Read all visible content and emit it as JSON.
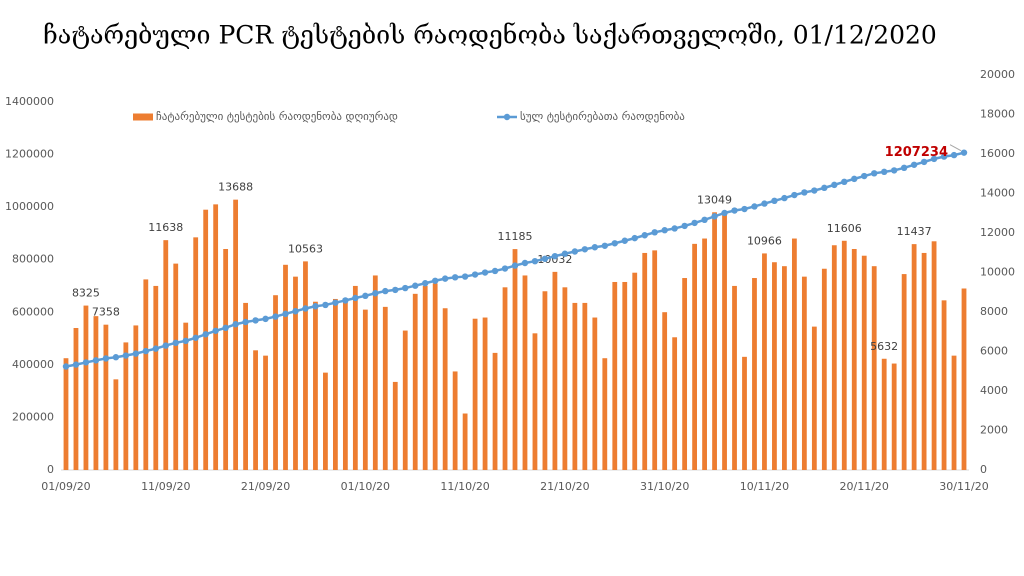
{
  "chart_data": {
    "type": "combo",
    "title": "ჩატარებული PCR ტესტების რაოდენობა საქართველოში, 01/12/2020",
    "categories": [
      "01/09/20",
      null,
      null,
      null,
      null,
      null,
      null,
      null,
      null,
      null,
      "11/09/20",
      null,
      null,
      null,
      null,
      null,
      null,
      null,
      null,
      null,
      "21/09/20",
      null,
      null,
      null,
      null,
      null,
      null,
      null,
      null,
      null,
      "01/10/20",
      null,
      null,
      null,
      null,
      null,
      null,
      null,
      null,
      null,
      "11/10/20",
      null,
      null,
      null,
      null,
      null,
      null,
      null,
      null,
      null,
      "21/10/20",
      null,
      null,
      null,
      null,
      null,
      null,
      null,
      null,
      null,
      "31/10/20",
      null,
      null,
      null,
      null,
      null,
      null,
      null,
      null,
      null,
      "10/11/20",
      null,
      null,
      null,
      null,
      null,
      null,
      null,
      null,
      null,
      "20/11/20",
      null,
      null,
      null,
      null,
      null,
      null,
      null,
      null,
      null,
      "30/11/20"
    ],
    "series": [
      {
        "name": "ჩატარებული ტესტების რაოდენობა დღიურად",
        "type": "bar",
        "axis": "y2",
        "color": "#ed7d31",
        "values": [
          5660,
          7190,
          8325,
          7790,
          7358,
          4590,
          6460,
          7320,
          9650,
          9320,
          11638,
          10450,
          7460,
          11780,
          13180,
          13450,
          11190,
          13688,
          8460,
          6060,
          5790,
          8850,
          10390,
          9790,
          10563,
          8520,
          4930,
          8660,
          8520,
          9320,
          8120,
          9850,
          8260,
          4460,
          7060,
          8920,
          9320,
          9450,
          8190,
          4990,
          2860,
          7660,
          7720,
          5930,
          9250,
          11185,
          9850,
          6920,
          9050,
          10032,
          9250,
          8460,
          8460,
          7720,
          5660,
          9520,
          9520,
          9990,
          10990,
          11120,
          7990,
          6720,
          9720,
          11450,
          11720,
          13049,
          12980,
          9320,
          5730,
          9720,
          10966,
          10520,
          10320,
          11720,
          9790,
          7260,
          10190,
          11380,
          11606,
          11190,
          10850,
          10320,
          5632,
          5390,
          9920,
          11437,
          10990,
          11580,
          8590,
          5790,
          9190
        ],
        "value_labels": [
          null,
          null,
          "8325",
          null,
          "7358",
          null,
          null,
          null,
          null,
          null,
          "11638",
          null,
          null,
          null,
          null,
          null,
          null,
          "13688",
          null,
          null,
          null,
          null,
          null,
          null,
          "10563",
          null,
          null,
          null,
          null,
          null,
          null,
          null,
          null,
          null,
          null,
          null,
          null,
          null,
          null,
          null,
          null,
          null,
          null,
          null,
          null,
          "11185",
          null,
          null,
          null,
          "10032",
          null,
          null,
          null,
          null,
          null,
          null,
          null,
          null,
          null,
          null,
          null,
          null,
          null,
          null,
          null,
          "13049",
          null,
          null,
          null,
          null,
          "10966",
          null,
          null,
          null,
          null,
          null,
          null,
          null,
          "11606",
          null,
          null,
          null,
          "5632",
          null,
          null,
          "11437",
          null,
          null,
          null,
          null,
          null
        ]
      },
      {
        "name": "სულ ტესტირებათა რაოდენობა",
        "type": "line",
        "axis": "y",
        "color": "#5b9bd5",
        "values": [
          393745,
          400935,
          409260,
          417050,
          424408,
          428998,
          435458,
          442778,
          452428,
          461748,
          473386,
          483836,
          491296,
          503076,
          516256,
          529706,
          540896,
          554584,
          563044,
          569104,
          574894,
          583744,
          594134,
          603924,
          614487,
          623007,
          627937,
          636597,
          645117,
          654437,
          662557,
          672407,
          680667,
          685127,
          692187,
          701107,
          710427,
          719877,
          728067,
          733057,
          735917,
          743577,
          751297,
          757227,
          766477,
          777662,
          787512,
          794432,
          803482,
          813514,
          822764,
          831224,
          839684,
          847404,
          853064,
          862584,
          872104,
          882094,
          893084,
          904204,
          912194,
          918914,
          928634,
          940084,
          951804,
          964853,
          977833,
          987153,
          992883,
          1002603,
          1013569,
          1024089,
          1034409,
          1046129,
          1055919,
          1063179,
          1073369,
          1084749,
          1096355,
          1107545,
          1118395,
          1128715,
          1134347,
          1139737,
          1149657,
          1161094,
          1172084,
          1183664,
          1192254,
          1198044,
          1207234
        ],
        "value_labels": [
          null,
          null,
          null,
          null,
          null,
          null,
          null,
          null,
          null,
          null,
          null,
          null,
          null,
          null,
          null,
          null,
          null,
          null,
          null,
          null,
          null,
          null,
          null,
          null,
          null,
          null,
          null,
          null,
          null,
          null,
          null,
          null,
          null,
          null,
          null,
          null,
          null,
          null,
          null,
          null,
          null,
          null,
          null,
          null,
          null,
          null,
          null,
          null,
          null,
          null,
          null,
          null,
          null,
          null,
          null,
          null,
          null,
          null,
          null,
          null,
          null,
          null,
          null,
          null,
          null,
          null,
          null,
          null,
          null,
          null,
          null,
          null,
          null,
          null,
          null,
          null,
          null,
          null,
          null,
          null,
          null,
          null,
          null,
          null,
          null,
          null,
          null,
          null,
          null,
          null,
          "1207234"
        ]
      }
    ],
    "ylim": [
      0,
      1400000
    ],
    "yticks": [
      0,
      200000,
      400000,
      600000,
      800000,
      1000000,
      1200000,
      1400000
    ],
    "y2lim": [
      0,
      20000
    ],
    "y2ticks": [
      0,
      2000,
      4000,
      6000,
      8000,
      10000,
      12000,
      14000,
      16000,
      18000,
      20000
    ],
    "grid": false,
    "legend": "top"
  }
}
